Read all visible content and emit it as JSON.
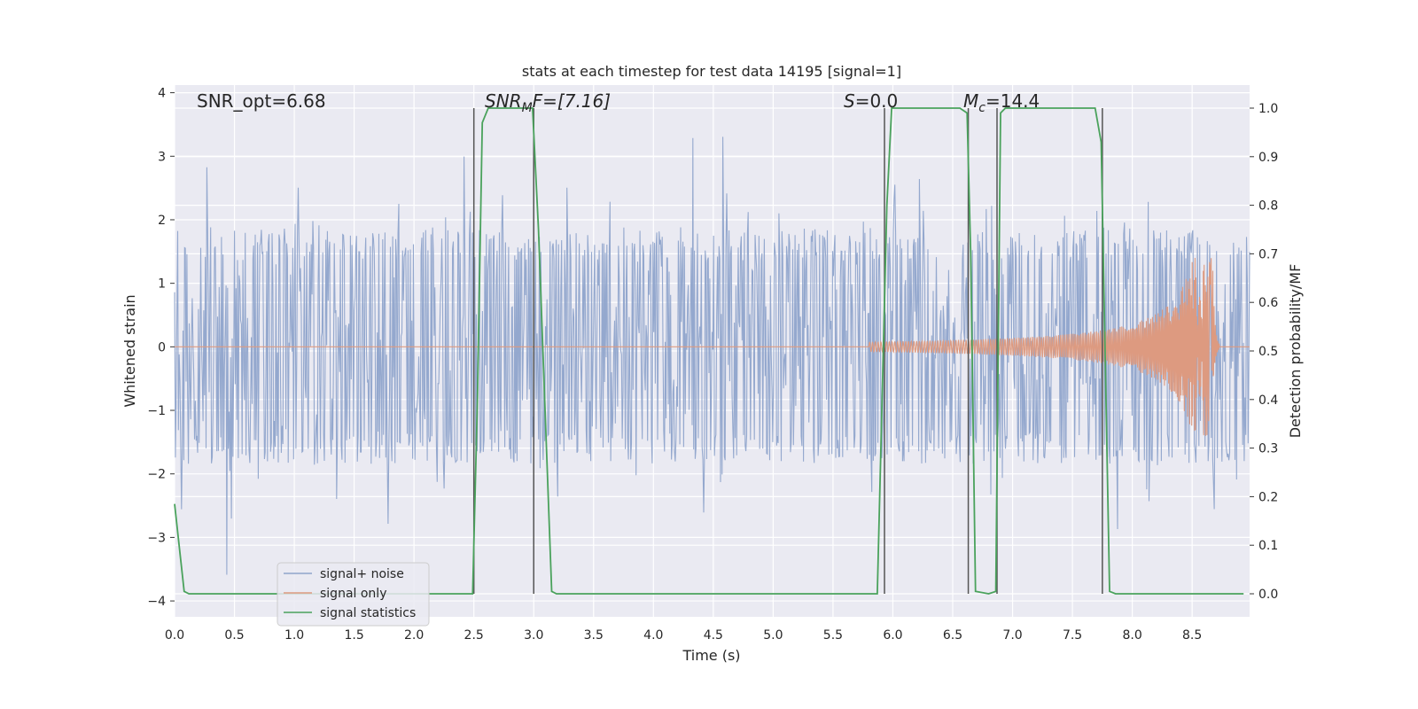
{
  "chart_data": {
    "type": "line",
    "title": "stats at each timestep for test data 14195 [signal=1]",
    "xlabel": "Time (s)",
    "ylabel_left": "Whitened strain",
    "ylabel_right": "Detection probability/MF",
    "xlim": [
      0.0,
      8.98
    ],
    "ylim_left": [
      -4.25,
      4.12
    ],
    "ylim_right": [
      0.0,
      1.0
    ],
    "x_ticks": [
      "0.0",
      "0.5",
      "1.0",
      "1.5",
      "2.0",
      "2.5",
      "3.0",
      "3.5",
      "4.0",
      "4.5",
      "5.0",
      "5.5",
      "6.0",
      "6.5",
      "7.0",
      "7.5",
      "8.0",
      "8.5"
    ],
    "y_ticks_left": [
      "−4",
      "−3",
      "−2",
      "−1",
      "0",
      "1",
      "2",
      "3",
      "4"
    ],
    "y_ticks_right": [
      "0.0",
      "0.1",
      "0.2",
      "0.3",
      "0.4",
      "0.5",
      "0.6",
      "0.7",
      "0.8",
      "0.9",
      "1.0"
    ],
    "grid": true,
    "legend_position": "lower-left",
    "annotations": {
      "snr_opt": "SNR_opt=6.68",
      "snr_mf_sym": "SNR",
      "snr_mf_sub": "M",
      "snr_mf_rest": "F=[7.16]",
      "s_sym": "S",
      "s_rest": "=0.0",
      "mc_sym": "M",
      "mc_sub": "c",
      "mc_rest": "=14.4"
    },
    "series": [
      {
        "name": "signal+ noise",
        "color": "#8fa4cb",
        "axis": "left",
        "kind": "noise",
        "envelope_typical": 1.6,
        "envelope_peak": 3.6
      },
      {
        "name": "signal only",
        "color": "#dd9a80",
        "axis": "left",
        "kind": "chirp",
        "start": 5.8,
        "merger": 8.67,
        "peak_amplitude": 1.4
      },
      {
        "name": "signal statistics",
        "color": "#4aa25c",
        "axis": "right",
        "x": [
          0.0,
          0.08,
          0.12,
          2.49,
          2.53,
          2.57,
          2.62,
          2.99,
          3.04,
          3.15,
          3.19,
          5.87,
          5.95,
          5.99,
          6.03,
          6.56,
          6.62,
          6.65,
          6.69,
          6.8,
          6.86,
          6.9,
          6.94,
          7.69,
          7.74,
          7.81,
          7.86,
          8.93
        ],
        "values": [
          0.185,
          0.005,
          0.0,
          0.0,
          0.4,
          0.97,
          1.0,
          1.0,
          0.75,
          0.005,
          0.0,
          0.0,
          0.8,
          1.0,
          1.0,
          1.0,
          0.99,
          0.7,
          0.005,
          0.0,
          0.005,
          0.99,
          1.0,
          1.0,
          0.93,
          0.005,
          0.0,
          0.0
        ]
      }
    ],
    "event_markers_x": [
      2.5,
      3.0,
      5.93,
      6.63,
      6.87,
      7.75
    ],
    "marker_color": "#555555"
  }
}
